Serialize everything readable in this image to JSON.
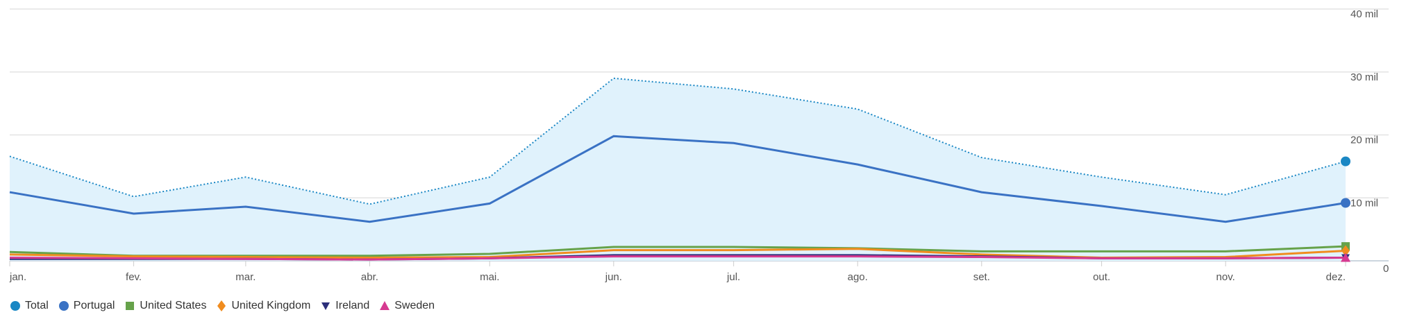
{
  "chart_data": {
    "type": "area",
    "x": [
      "jan.",
      "fev.",
      "mar.",
      "abr.",
      "mai.",
      "jun.",
      "jul.",
      "ago.",
      "set.",
      "out.",
      "nov.",
      "dez."
    ],
    "y_ticks": [
      "0",
      "10 mil",
      "20 mil",
      "30 mil",
      "40 mil"
    ],
    "ylim": [
      0,
      40000
    ],
    "grid": true,
    "legend_position": "bottom-left",
    "series": [
      {
        "name": "Total",
        "color": "#1a87c4",
        "marker": "pin",
        "style": "dotted-area",
        "values": [
          16600,
          10200,
          13300,
          9000,
          13300,
          29000,
          27300,
          24100,
          16400,
          13300,
          10500,
          15800
        ]
      },
      {
        "name": "Portugal",
        "color": "#3a72c4",
        "marker": "circle",
        "style": "line",
        "values": [
          10900,
          7500,
          8600,
          6200,
          9100,
          19800,
          18700,
          15300,
          10900,
          8700,
          6200,
          9200
        ]
      },
      {
        "name": "United States",
        "color": "#66a24a",
        "marker": "square",
        "style": "line",
        "values": [
          1400,
          800,
          800,
          800,
          1100,
          2200,
          2200,
          2000,
          1500,
          1500,
          1500,
          2300
        ]
      },
      {
        "name": "United Kingdom",
        "color": "#f08c1f",
        "marker": "diamond",
        "style": "line",
        "values": [
          1000,
          700,
          600,
          500,
          600,
          1700,
          1700,
          1900,
          1000,
          500,
          600,
          1600
        ]
      },
      {
        "name": "Ireland",
        "color": "#2b2f7a",
        "marker": "triangle-down",
        "style": "line",
        "values": [
          300,
          300,
          300,
          200,
          400,
          900,
          900,
          900,
          700,
          400,
          400,
          500
        ]
      },
      {
        "name": "Sweden",
        "color": "#d63a91",
        "marker": "triangle-up",
        "style": "line",
        "values": [
          500,
          400,
          300,
          200,
          400,
          700,
          700,
          700,
          600,
          400,
          400,
          500
        ]
      }
    ]
  }
}
